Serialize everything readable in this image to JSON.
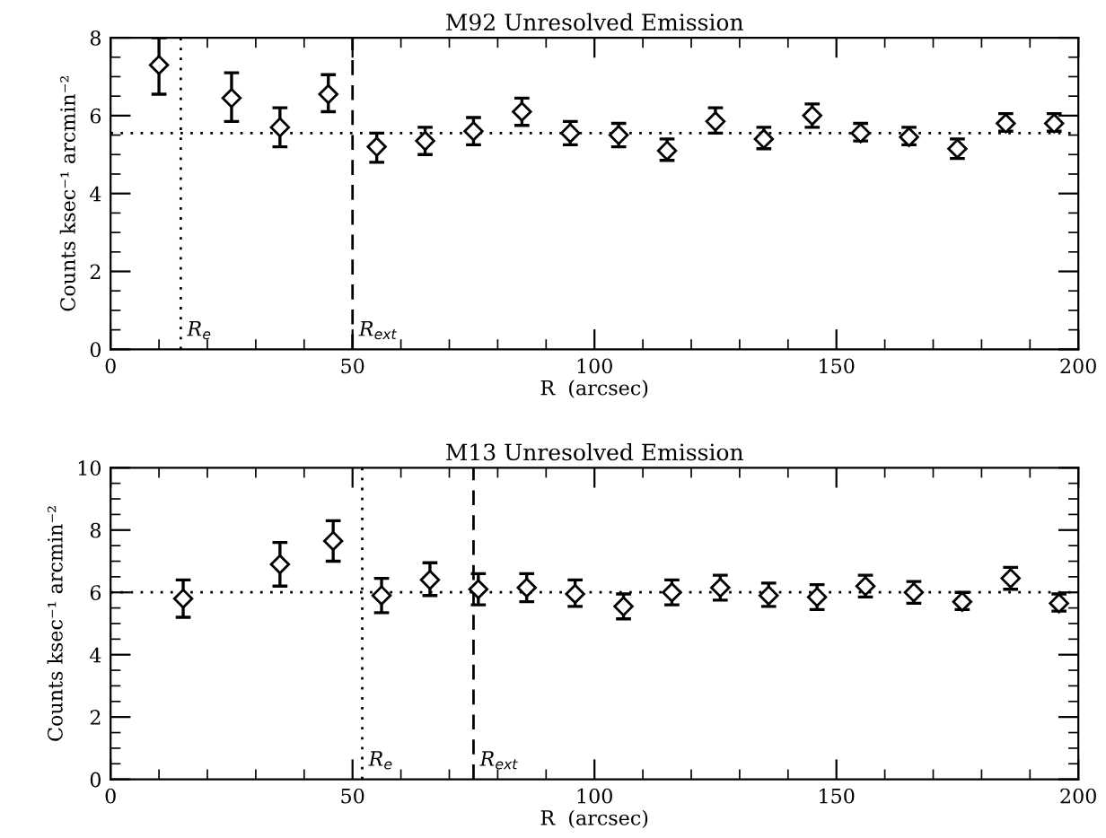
{
  "chart_data": [
    {
      "type": "scatter",
      "title": "M92 Unresolved Emission",
      "xlabel": "R  (arcsec)",
      "ylabel": "Counts ksec⁻¹ arcmin⁻²",
      "marker": "diamond",
      "grid": false,
      "legend": false,
      "xlim": [
        0,
        200
      ],
      "xticks": [
        0,
        50,
        100,
        150,
        200
      ],
      "ylim": [
        0,
        8
      ],
      "yticks": [
        0,
        2,
        4,
        6,
        8
      ],
      "series": [
        {
          "color": "#000000",
          "x": [
            10,
            25,
            35,
            45,
            55,
            65,
            75,
            85,
            95,
            105,
            115,
            125,
            135,
            145,
            155,
            165,
            175,
            185,
            195
          ],
          "values": [
            7.3,
            6.45,
            5.7,
            6.55,
            5.2,
            5.35,
            5.6,
            6.1,
            5.55,
            5.5,
            5.1,
            5.85,
            5.4,
            6.0,
            5.55,
            5.45,
            5.15,
            5.8,
            5.8
          ],
          "errors": [
            [
              6.55,
              8.0
            ],
            [
              5.85,
              7.1
            ],
            [
              5.2,
              6.2
            ],
            [
              6.1,
              7.05
            ],
            [
              4.8,
              5.55
            ],
            [
              5.0,
              5.7
            ],
            [
              5.25,
              5.95
            ],
            [
              5.75,
              6.45
            ],
            [
              5.25,
              5.85
            ],
            [
              5.2,
              5.8
            ],
            [
              4.85,
              5.4
            ],
            [
              5.55,
              6.2
            ],
            [
              5.15,
              5.7
            ],
            [
              5.7,
              6.3
            ],
            [
              5.35,
              5.8
            ],
            [
              5.25,
              5.7
            ],
            [
              4.9,
              5.4
            ],
            [
              5.6,
              6.05
            ],
            [
              5.6,
              6.05
            ]
          ]
        }
      ],
      "ref_lines": [
        {
          "axis": "y",
          "value": 5.55,
          "line_style": "dotted",
          "color": "#000000"
        },
        {
          "axis": "x",
          "value": 14.5,
          "label": "R$_{e}$",
          "line_style": "dotted",
          "color": "#000000"
        },
        {
          "axis": "x",
          "value": 50,
          "label": "R$_{ext}$",
          "line_style": "dashed",
          "color": "#000000"
        }
      ]
    },
    {
      "type": "scatter",
      "title": "M13 Unresolved Emission",
      "xlabel": "R  (arcsec)",
      "ylabel": "Counts ksec⁻¹ arcmin⁻²",
      "marker": "diamond",
      "grid": false,
      "legend": false,
      "xlim": [
        0,
        200
      ],
      "xticks": [
        0,
        50,
        100,
        150,
        200
      ],
      "ylim": [
        0,
        10
      ],
      "yticks": [
        0,
        2,
        4,
        6,
        8,
        10
      ],
      "series": [
        {
          "color": "#000000",
          "x": [
            15,
            35,
            46,
            56,
            66,
            76,
            86,
            96,
            106,
            116,
            126,
            136,
            146,
            156,
            166,
            176,
            186,
            196
          ],
          "values": [
            5.8,
            6.9,
            7.65,
            5.9,
            6.4,
            6.1,
            6.15,
            5.95,
            5.55,
            6.0,
            6.15,
            5.9,
            5.85,
            6.2,
            6.0,
            5.7,
            6.45,
            5.65
          ],
          "errors": [
            [
              5.2,
              6.4
            ],
            [
              6.2,
              7.6
            ],
            [
              7.0,
              8.3
            ],
            [
              5.35,
              6.45
            ],
            [
              5.9,
              6.95
            ],
            [
              5.6,
              6.6
            ],
            [
              5.7,
              6.6
            ],
            [
              5.55,
              6.4
            ],
            [
              5.15,
              5.95
            ],
            [
              5.6,
              6.4
            ],
            [
              5.75,
              6.55
            ],
            [
              5.55,
              6.3
            ],
            [
              5.45,
              6.25
            ],
            [
              5.85,
              6.55
            ],
            [
              5.65,
              6.35
            ],
            [
              5.45,
              6.0
            ],
            [
              6.1,
              6.8
            ],
            [
              5.4,
              5.95
            ]
          ]
        }
      ],
      "ref_lines": [
        {
          "axis": "y",
          "value": 6.0,
          "line_style": "dotted",
          "color": "#000000"
        },
        {
          "axis": "x",
          "value": 52,
          "label": "R$_{e}$",
          "line_style": "dotted",
          "color": "#000000"
        },
        {
          "axis": "x",
          "value": 75,
          "label": "R$_{ext}$",
          "line_style": "dashed",
          "color": "#000000"
        }
      ]
    }
  ]
}
